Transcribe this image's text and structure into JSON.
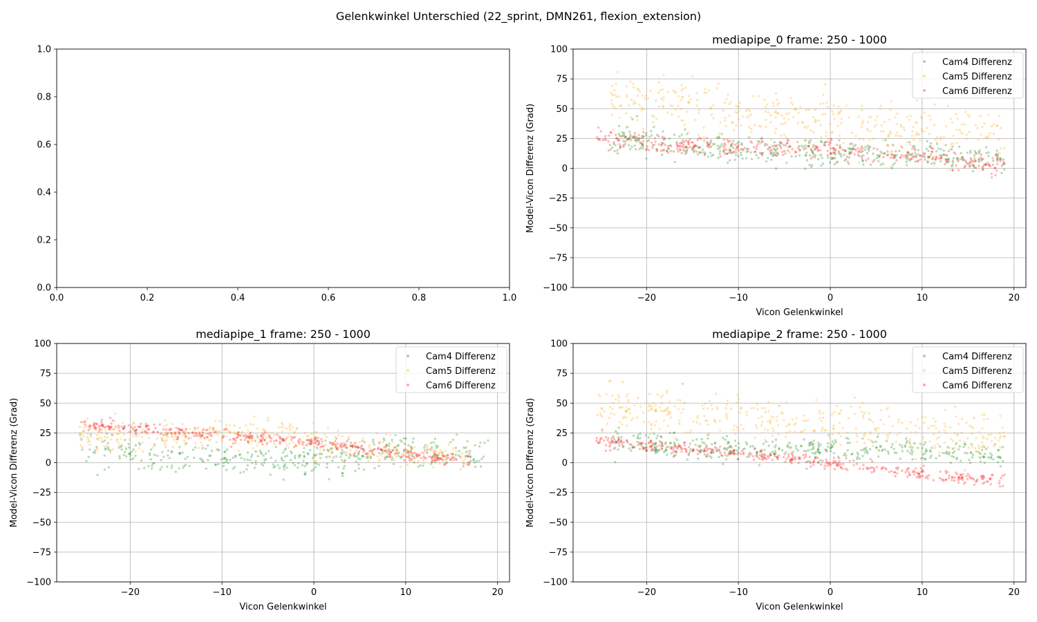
{
  "figure": {
    "suptitle": "Gelenkwinkel Unterschied (22_sprint, DMN261, flexion_extension)"
  },
  "chart_data": [
    {
      "type": "axes",
      "title": "",
      "xlabel": "",
      "ylabel": "",
      "xlim": [
        0,
        1
      ],
      "ylim": [
        0,
        1
      ],
      "xticks": [
        0.0,
        0.2,
        0.4,
        0.6,
        0.8,
        1.0
      ],
      "xticklabels": [
        "0.0",
        "0.2",
        "0.4",
        "0.6",
        "0.8",
        "1.0"
      ],
      "yticks": [
        0.0,
        0.2,
        0.4,
        0.6,
        0.8,
        1.0
      ],
      "yticklabels": [
        "0.0",
        "0.2",
        "0.4",
        "0.6",
        "0.8",
        "1.0"
      ],
      "grid": false,
      "series": []
    },
    {
      "type": "scatter",
      "title": "mediapipe_0 frame: 250 - 1000",
      "xlabel": "Vicon Gelenkwinkel",
      "ylabel": "Model-Vicon Differenz (Grad)",
      "xlim": [
        -28,
        21.3
      ],
      "ylim": [
        -100,
        100
      ],
      "xticks": [
        -20,
        -10,
        0,
        10,
        20
      ],
      "xticklabels": [
        "−20",
        "−10",
        "0",
        "10",
        "20"
      ],
      "yticks": [
        -100,
        -75,
        -50,
        -25,
        0,
        25,
        50,
        75,
        100
      ],
      "yticklabels": [
        "−100",
        "−75",
        "−50",
        "−25",
        "0",
        "25",
        "50",
        "75",
        "100"
      ],
      "grid": true,
      "legend": "upper right",
      "series": [
        {
          "name": "Cam4 Differenz",
          "color": "#008000",
          "x_range": [
            -24,
            19
          ],
          "trend": [
            [
              -24,
              24
            ],
            [
              -10,
              17
            ],
            [
              0,
              12
            ],
            [
              19,
              8
            ]
          ],
          "spread": 6,
          "n": 400,
          "seed": 11
        },
        {
          "name": "Cam5 Differenz",
          "color": "#ffa500",
          "x_range": [
            -24,
            19
          ],
          "trend": [
            [
              -24,
              58
            ],
            [
              -18,
              57
            ],
            [
              -10,
              44
            ],
            [
              0,
              38
            ],
            [
              10,
              30
            ],
            [
              19,
              27
            ]
          ],
          "spread": 12,
          "n": 400,
          "seed": 12
        },
        {
          "name": "Cam6 Differenz",
          "color": "#ff0000",
          "x_range": [
            -25.5,
            19
          ],
          "trend": [
            [
              -25.5,
              24
            ],
            [
              -10,
              17
            ],
            [
              0,
              16
            ],
            [
              10,
              9
            ],
            [
              19,
              3
            ]
          ],
          "spread": 4,
          "n": 400,
          "seed": 13
        }
      ]
    },
    {
      "type": "scatter",
      "title": "mediapipe_1 frame: 250 - 1000",
      "xlabel": "Vicon Gelenkwinkel",
      "ylabel": "Model-Vicon Differenz (Grad)",
      "xlim": [
        -28,
        21.3
      ],
      "ylim": [
        -100,
        100
      ],
      "xticks": [
        -20,
        -10,
        0,
        10,
        20
      ],
      "xticklabels": [
        "−20",
        "−10",
        "0",
        "10",
        "20"
      ],
      "yticks": [
        -100,
        -75,
        -50,
        -25,
        0,
        25,
        50,
        75,
        100
      ],
      "yticklabels": [
        "−100",
        "−75",
        "−50",
        "−25",
        "0",
        "25",
        "50",
        "75",
        "100"
      ],
      "grid": true,
      "legend": "upper right",
      "series": [
        {
          "name": "Cam4 Differenz",
          "color": "#008000",
          "x_range": [
            -25.5,
            19
          ],
          "trend": [
            [
              -25.5,
              13
            ],
            [
              -15,
              4
            ],
            [
              -10,
              2
            ],
            [
              0,
              5
            ],
            [
              10,
              10
            ],
            [
              19,
              8
            ]
          ],
          "spread": 7,
          "n": 400,
          "seed": 21
        },
        {
          "name": "Cam5 Differenz",
          "color": "#ffa500",
          "x_range": [
            -25.5,
            17
          ],
          "trend": [
            [
              -25.5,
              22
            ],
            [
              -15,
              22
            ],
            [
              -5,
              24
            ],
            [
              0,
              18
            ],
            [
              10,
              8
            ],
            [
              17,
              3
            ]
          ],
          "spread": 6,
          "n": 400,
          "seed": 22
        },
        {
          "name": "Cam6 Differenz",
          "color": "#ff0000",
          "x_range": [
            -25.5,
            17
          ],
          "trend": [
            [
              -25.5,
              32
            ],
            [
              -15,
              27
            ],
            [
              -10,
              23
            ],
            [
              0,
              17
            ],
            [
              10,
              7
            ],
            [
              17,
              2
            ]
          ],
          "spread": 2.5,
          "n": 400,
          "seed": 23
        }
      ]
    },
    {
      "type": "scatter",
      "title": "mediapipe_2 frame: 250 - 1000",
      "xlabel": "Vicon Gelenkwinkel",
      "ylabel": "Model-Vicon Differenz (Grad)",
      "xlim": [
        -28,
        21.3
      ],
      "ylim": [
        -100,
        100
      ],
      "xticks": [
        -20,
        -10,
        0,
        10,
        20
      ],
      "xticklabels": [
        "−20",
        "−10",
        "0",
        "10",
        "20"
      ],
      "yticks": [
        -100,
        -75,
        -50,
        -25,
        0,
        25,
        50,
        75,
        100
      ],
      "yticklabels": [
        "−100",
        "−75",
        "−50",
        "−25",
        "0",
        "25",
        "50",
        "75",
        "100"
      ],
      "grid": true,
      "legend": "upper right",
      "series": [
        {
          "name": "Cam4 Differenz",
          "color": "#008000",
          "x_range": [
            -24,
            19
          ],
          "trend": [
            [
              -24,
              18
            ],
            [
              -10,
              11
            ],
            [
              0,
              12
            ],
            [
              19,
              6
            ]
          ],
          "spread": 5,
          "n": 400,
          "seed": 31
        },
        {
          "name": "Cam5 Differenz",
          "color": "#ffa500",
          "x_range": [
            -25.5,
            19
          ],
          "trend": [
            [
              -25.5,
              45
            ],
            [
              -18,
              44
            ],
            [
              -10,
              38
            ],
            [
              0,
              32
            ],
            [
              10,
              26
            ],
            [
              19,
              21
            ]
          ],
          "spread": 10,
          "n": 400,
          "seed": 32
        },
        {
          "name": "Cam6 Differenz",
          "color": "#ff0000",
          "x_range": [
            -25.5,
            19
          ],
          "trend": [
            [
              -25.5,
              19
            ],
            [
              -15,
              11
            ],
            [
              -5,
              5
            ],
            [
              0,
              0
            ],
            [
              10,
              -10
            ],
            [
              19,
              -16
            ]
          ],
          "spread": 2.5,
          "n": 400,
          "seed": 33
        }
      ]
    }
  ]
}
